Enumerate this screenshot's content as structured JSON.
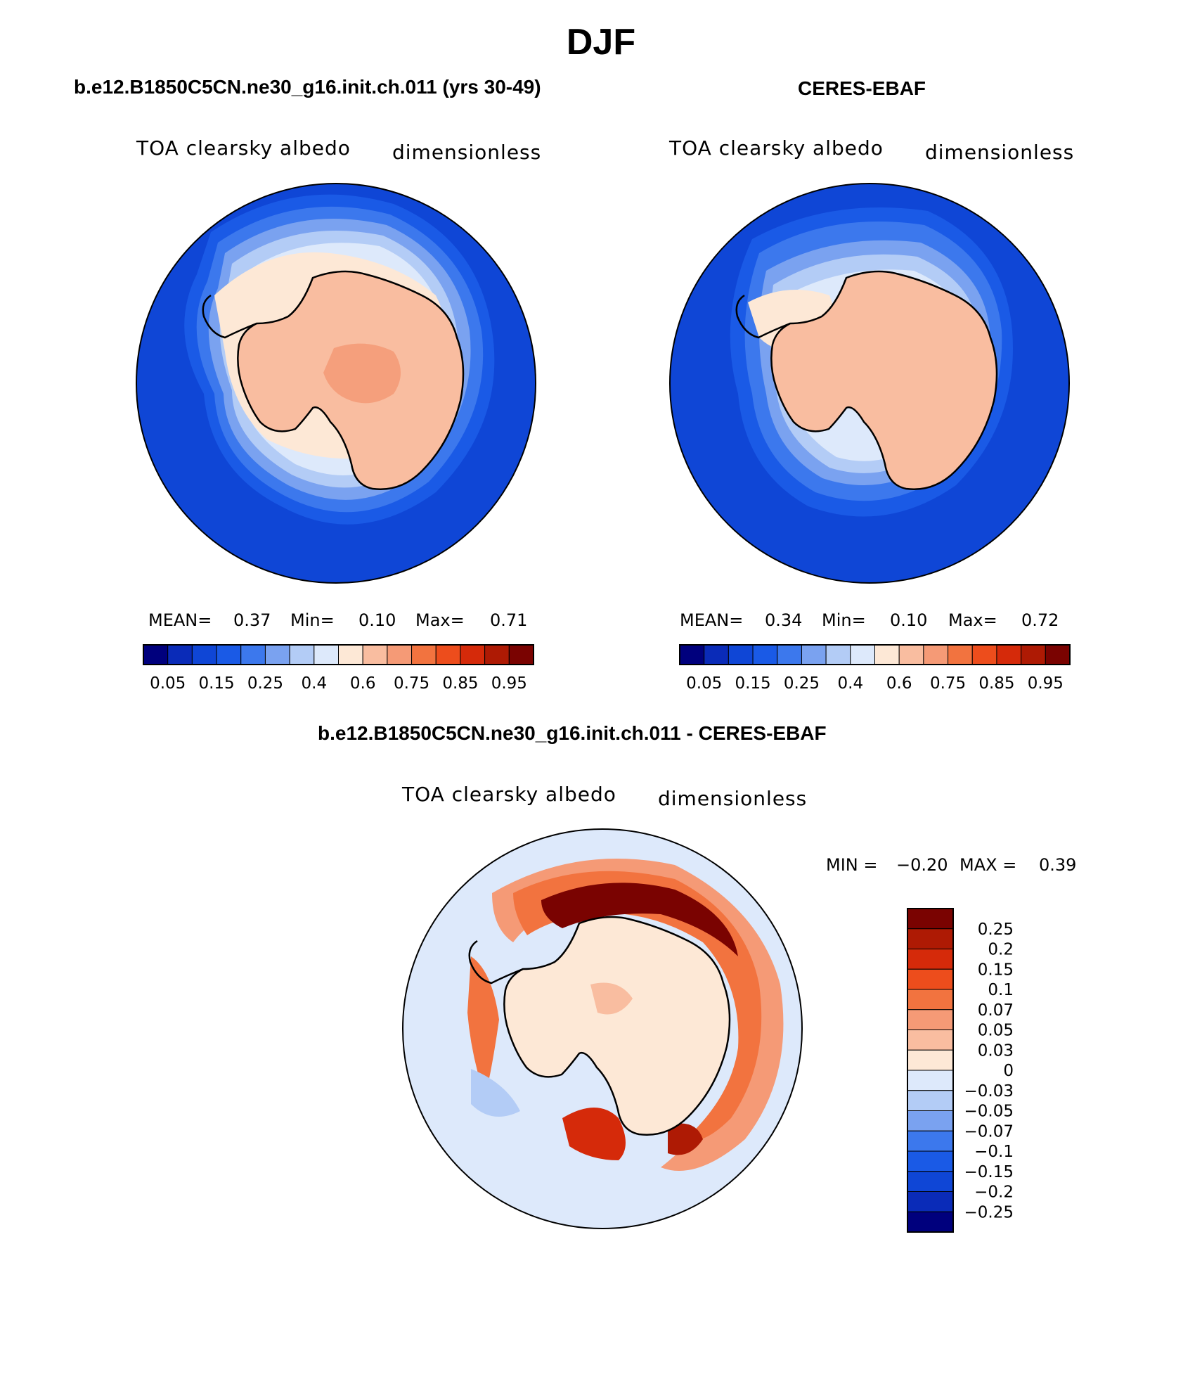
{
  "title": "DJF",
  "panels": [
    {
      "id": "model",
      "title": "b.e12.B1850C5CN.ne30_g16.init.ch.011 (yrs 30-49)",
      "variable": "TOA clearsky albedo",
      "units": "dimensionless",
      "stats": {
        "mean_label": "MEAN=",
        "mean": "0.37",
        "min_label": "Min=",
        "min": "0.10",
        "max_label": "Max=",
        "max": "0.71"
      }
    },
    {
      "id": "obs",
      "title": "CERES-EBAF",
      "variable": "TOA clearsky albedo",
      "units": "dimensionless",
      "stats": {
        "mean_label": "MEAN=",
        "mean": "0.34",
        "min_label": "Min=",
        "min": "0.10",
        "max_label": "Max=",
        "max": "0.72"
      }
    },
    {
      "id": "diff",
      "title": "b.e12.B1850C5CN.ne30_g16.init.ch.011 - CERES-EBAF",
      "variable": "TOA clearsky albedo",
      "units": "dimensionless",
      "stats": {
        "min_label": "MIN =",
        "min": "−0.20",
        "max_label": "MAX =",
        "max": "0.39"
      }
    }
  ],
  "colorbar_abs": {
    "colors": [
      "#00007d",
      "#0a2bb8",
      "#0f46d6",
      "#1a5ae6",
      "#3c78ed",
      "#7aa2f0",
      "#b3ccf6",
      "#dde9fb",
      "#fde8d6",
      "#f9bda0",
      "#f59a76",
      "#f2733f",
      "#ed4d1c",
      "#d52a0a",
      "#ae1a04",
      "#7a0301"
    ],
    "ticks": [
      "0.05",
      "0.15",
      "0.25",
      "0.4",
      "0.6",
      "0.75",
      "0.85",
      "0.95"
    ]
  },
  "colorbar_diff": {
    "colors": [
      "#7a0301",
      "#ae1a04",
      "#d52a0a",
      "#ed4d1c",
      "#f2733f",
      "#f59a76",
      "#f9bda0",
      "#fde8d6",
      "#dde9fb",
      "#b3ccf6",
      "#7aa2f0",
      "#3c78ed",
      "#1a5ae6",
      "#0f46d6",
      "#0a2bb8",
      "#00007d"
    ],
    "ticks": [
      "0.25",
      "0.2",
      "0.15",
      "0.1",
      "0.07",
      "0.05",
      "0.03",
      "0",
      "−0.03",
      "−0.05",
      "−0.07",
      "−0.1",
      "−0.15",
      "−0.2",
      "−0.25"
    ]
  }
}
